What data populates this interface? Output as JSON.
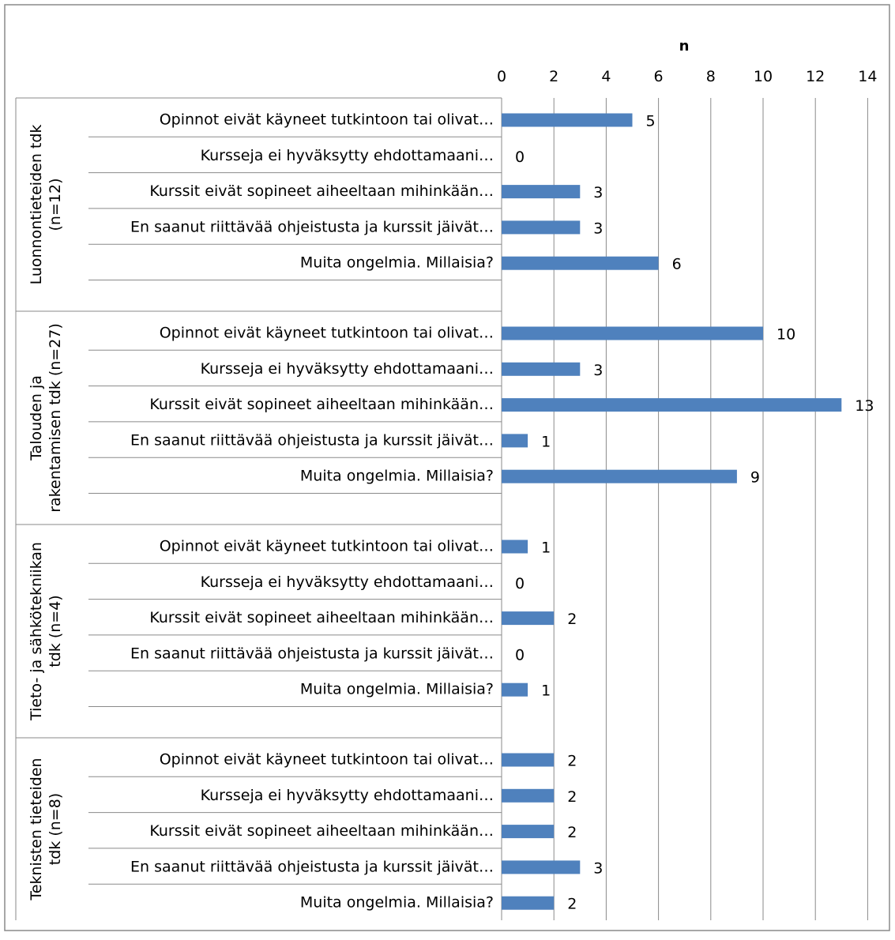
{
  "chart_data": {
    "type": "bar",
    "orientation": "horizontal",
    "xlabel": "n",
    "xlim": [
      0,
      14
    ],
    "xticks": [
      0,
      2,
      4,
      6,
      8,
      10,
      12,
      14
    ],
    "grid": true,
    "legend": "none",
    "bar_color": "#4f81bd",
    "groups": [
      {
        "label_lines": [
          "Luonnontieteiden tdk",
          "(n=12)"
        ],
        "categories": [
          "Opinnot eivät käyneet tutkintoon tai olivat…",
          "Kursseja ei hyväksytty ehdottamaani…",
          "Kurssit eivät sopineet aiheeltaan mihinkään…",
          "En saanut riittävää ohjeistusta ja kurssit jäivät…",
          "Muita ongelmia. Millaisia?"
        ],
        "values": [
          5,
          0,
          3,
          3,
          6
        ]
      },
      {
        "label_lines": [
          "Talouden ja",
          "rakentamisen tdk (n=27)"
        ],
        "categories": [
          "Opinnot eivät käyneet tutkintoon tai olivat…",
          "Kursseja ei hyväksytty ehdottamaani…",
          "Kurssit eivät sopineet aiheeltaan mihinkään…",
          "En saanut riittävää ohjeistusta ja kurssit jäivät…",
          "Muita ongelmia. Millaisia?"
        ],
        "values": [
          10,
          3,
          13,
          1,
          9
        ]
      },
      {
        "label_lines": [
          "Tieto- ja sähkötekniikan",
          "tdk (n=4)"
        ],
        "categories": [
          "Opinnot eivät käyneet tutkintoon tai olivat…",
          "Kursseja ei hyväksytty ehdottamaani…",
          "Kurssit eivät sopineet aiheeltaan mihinkään…",
          "En saanut riittävää ohjeistusta ja kurssit jäivät…",
          "Muita ongelmia. Millaisia?"
        ],
        "values": [
          1,
          0,
          2,
          0,
          1
        ]
      },
      {
        "label_lines": [
          "Teknisten tieteiden",
          "tdk (n=8)"
        ],
        "categories": [
          "Opinnot eivät käyneet tutkintoon tai olivat…",
          "Kursseja ei hyväksytty ehdottamaani…",
          "Kurssit eivät sopineet aiheeltaan mihinkään…",
          "En saanut riittävää ohjeistusta ja kurssit jäivät…",
          "Muita ongelmia. Millaisia?"
        ],
        "values": [
          2,
          2,
          2,
          3,
          2
        ]
      }
    ]
  }
}
